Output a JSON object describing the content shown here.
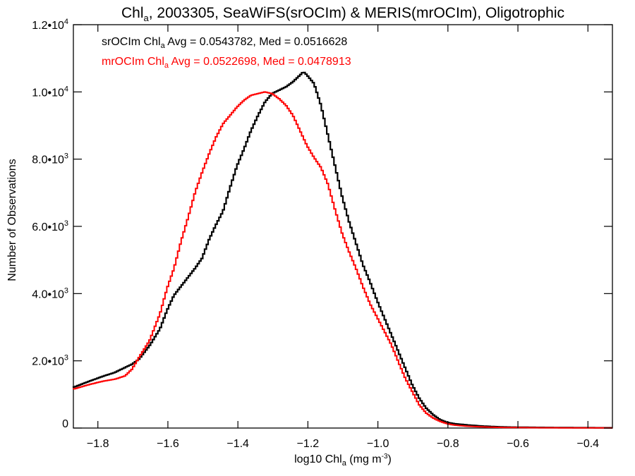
{
  "chart_data": {
    "type": "line",
    "title": {
      "main": "Chl",
      "sub": "a",
      "rest": ", 2003305, SeaWiFS(srOCIm) & MERIS(mrOCIm), Oligotrophic"
    },
    "xlabel": {
      "pre": "log10 Chl",
      "sub": "a",
      "mid": " (mg m",
      "sup": "-3",
      "post": ")"
    },
    "ylabel": "Number of Observations",
    "xlim": [
      -1.87,
      -0.33
    ],
    "ylim": [
      0,
      12000
    ],
    "xticks": [
      -1.8,
      -1.6,
      -1.4,
      -1.2,
      -1.0,
      -0.8,
      -0.6,
      -0.4
    ],
    "xtick_labels": [
      "−1.8",
      "−1.6",
      "−1.4",
      "−1.2",
      "−1.0",
      "−0.8",
      "−0.6",
      "−0.4"
    ],
    "yticks": [
      {
        "value": 0,
        "mantissa": "0",
        "exp": ""
      },
      {
        "value": 2000,
        "mantissa": "2.0•10",
        "exp": "3"
      },
      {
        "value": 4000,
        "mantissa": "4.0•10",
        "exp": "3"
      },
      {
        "value": 6000,
        "mantissa": "6.0•10",
        "exp": "3"
      },
      {
        "value": 8000,
        "mantissa": "8.0•10",
        "exp": "3"
      },
      {
        "value": 10000,
        "mantissa": "1.0•10",
        "exp": "4"
      },
      {
        "value": 12000,
        "mantissa": "1.2•10",
        "exp": "4"
      }
    ],
    "grid": false,
    "legend_position": "top-left",
    "colors": {
      "srOCIm": "#000000",
      "mrOCIm": "#ff0000"
    },
    "series": [
      {
        "name": "srOCIm",
        "legend": {
          "pre": "srOCIm Chl",
          "sub": "a",
          "post": " Avg = 0.0543782, Med = 0.0516628"
        },
        "x": [
          -1.87,
          -1.82,
          -1.78,
          -1.75,
          -1.72,
          -1.7,
          -1.68,
          -1.65,
          -1.62,
          -1.6,
          -1.58,
          -1.55,
          -1.52,
          -1.5,
          -1.48,
          -1.46,
          -1.44,
          -1.42,
          -1.4,
          -1.38,
          -1.36,
          -1.34,
          -1.32,
          -1.3,
          -1.28,
          -1.26,
          -1.24,
          -1.22,
          -1.21,
          -1.2,
          -1.18,
          -1.16,
          -1.14,
          -1.12,
          -1.1,
          -1.08,
          -1.06,
          -1.04,
          -1.02,
          -1.0,
          -0.98,
          -0.96,
          -0.94,
          -0.92,
          -0.9,
          -0.88,
          -0.86,
          -0.84,
          -0.82,
          -0.8,
          -0.78,
          -0.76,
          -0.74,
          -0.72,
          -0.7,
          -0.68,
          -0.66,
          -0.64,
          -0.6,
          -0.55,
          -0.5,
          -0.45,
          -0.4,
          -0.33
        ],
        "values": [
          1200,
          1400,
          1550,
          1650,
          1800,
          1900,
          2050,
          2450,
          2950,
          3500,
          3950,
          4350,
          4750,
          5050,
          5600,
          6050,
          6450,
          7150,
          7800,
          8300,
          8850,
          9300,
          9700,
          9950,
          10050,
          10150,
          10300,
          10500,
          10600,
          10500,
          10250,
          9600,
          8700,
          7800,
          6900,
          6150,
          5500,
          4850,
          4350,
          3800,
          3300,
          2800,
          2300,
          1800,
          1300,
          900,
          600,
          400,
          250,
          170,
          130,
          110,
          90,
          75,
          60,
          50,
          40,
          32,
          25,
          20,
          16,
          12,
          10,
          8
        ]
      },
      {
        "name": "mrOCIm",
        "legend": {
          "pre": "mrOCIm Chl",
          "sub": "a",
          "post": " Avg = 0.0522698, Med = 0.0478913"
        },
        "x": [
          -1.87,
          -1.82,
          -1.78,
          -1.75,
          -1.72,
          -1.7,
          -1.68,
          -1.65,
          -1.62,
          -1.6,
          -1.58,
          -1.56,
          -1.54,
          -1.52,
          -1.5,
          -1.48,
          -1.46,
          -1.44,
          -1.42,
          -1.4,
          -1.38,
          -1.36,
          -1.34,
          -1.32,
          -1.3,
          -1.28,
          -1.26,
          -1.24,
          -1.22,
          -1.2,
          -1.18,
          -1.16,
          -1.14,
          -1.12,
          -1.1,
          -1.08,
          -1.06,
          -1.04,
          -1.02,
          -1.0,
          -0.98,
          -0.96,
          -0.94,
          -0.92,
          -0.9,
          -0.88,
          -0.86,
          -0.84,
          -0.82,
          -0.8,
          -0.78,
          -0.76,
          -0.74,
          -0.72,
          -0.7,
          -0.68,
          -0.66,
          -0.64,
          -0.6,
          -0.55,
          -0.5,
          -0.45,
          -0.4,
          -0.33
        ],
        "values": [
          1150,
          1300,
          1400,
          1450,
          1550,
          1750,
          2100,
          2600,
          3400,
          4150,
          4750,
          5550,
          6250,
          7000,
          7600,
          8150,
          8650,
          9050,
          9300,
          9550,
          9750,
          9900,
          9950,
          10000,
          9950,
          9800,
          9600,
          9300,
          8850,
          8400,
          8050,
          7750,
          7250,
          6500,
          5800,
          5250,
          4750,
          4200,
          3700,
          3300,
          2900,
          2500,
          2000,
          1500,
          1100,
          700,
          450,
          300,
          200,
          130,
          90,
          70,
          55,
          45,
          35,
          28,
          22,
          18,
          14,
          10,
          8,
          6,
          5,
          3
        ]
      }
    ]
  }
}
